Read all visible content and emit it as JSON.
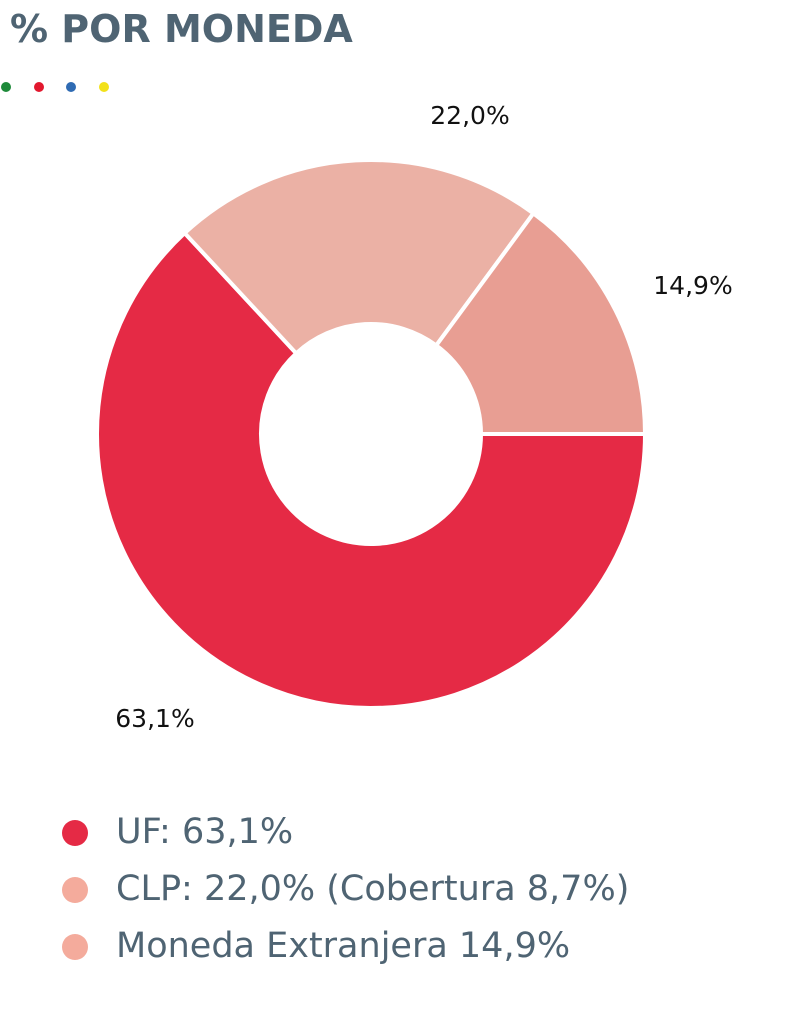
{
  "chart_data": {
    "type": "donut",
    "title": "% POR MONEDA",
    "categories": [
      "UF: 63,1%",
      "CLP: 22,0% (Cobertura 8,7%)",
      "Moneda Extranjera 14,9%"
    ],
    "values": [
      63.1,
      22.0,
      14.9
    ],
    "value_labels": [
      "63,1%",
      "22,0%",
      "14,9%"
    ],
    "colors": [
      "#e52a45",
      "#ebb1a5",
      "#e89e93"
    ],
    "legend_colors": [
      "#e52a45",
      "#f4ab9c",
      "#f4ab9c"
    ]
  }
}
